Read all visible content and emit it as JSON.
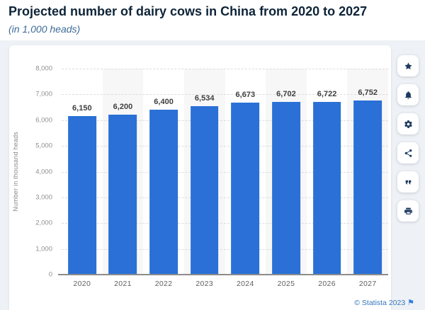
{
  "header": {
    "title": "Projected number of dairy cows in China from 2020 to 2027",
    "subtitle": "(in 1,000 heads)"
  },
  "chart_data": {
    "type": "bar",
    "title": "Projected number of dairy cows in China from 2020 to 2027",
    "subtitle": "(in 1,000 heads)",
    "categories": [
      "2020",
      "2021",
      "2022",
      "2023",
      "2024",
      "2025",
      "2026",
      "2027"
    ],
    "values": [
      6150,
      6200,
      6400,
      6534,
      6673,
      6702,
      6722,
      6752
    ],
    "value_labels": [
      "6,150",
      "6,200",
      "6,400",
      "6,534",
      "6,673",
      "6,702",
      "6,722",
      "6,752"
    ],
    "xlabel": "",
    "ylabel": "Number in thousand heads",
    "ylim": [
      0,
      8000
    ],
    "yticks": [
      0,
      1000,
      2000,
      3000,
      4000,
      5000,
      6000,
      7000,
      8000
    ],
    "ytick_labels": [
      "0",
      "1,000",
      "2,000",
      "3,000",
      "4,000",
      "5,000",
      "6,000",
      "7,000",
      "8,000"
    ],
    "grid": true,
    "legend": "none",
    "bar_color": "#2a70d6",
    "band_color": "#f7f7f8"
  },
  "sidebar": {
    "buttons": [
      {
        "name": "favorite-button",
        "icon": "star-icon"
      },
      {
        "name": "notification-button",
        "icon": "bell-icon"
      },
      {
        "name": "settings-button",
        "icon": "gear-icon"
      },
      {
        "name": "share-button",
        "icon": "share-icon"
      },
      {
        "name": "citation-button",
        "icon": "quote-icon"
      },
      {
        "name": "print-button",
        "icon": "printer-icon"
      }
    ]
  },
  "footer": {
    "copyright": "© Statista 2023",
    "flag_icon": "⚑"
  },
  "colors": {
    "bar": "#2a70d6",
    "title": "#0e2438",
    "subtitle": "#3d6b97",
    "page_bg": "#eef1f5",
    "band": "#f7f7f8",
    "axis": "#8c8c8c",
    "link": "#3577bb"
  }
}
